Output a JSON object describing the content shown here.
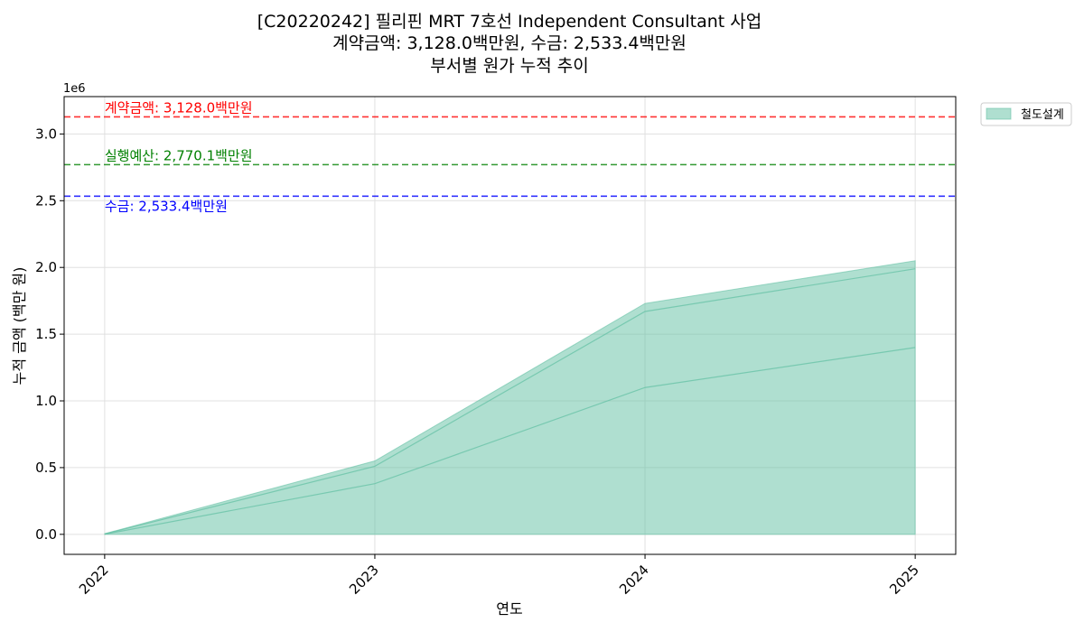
{
  "chart_data": {
    "type": "area",
    "title_lines": [
      "[C20220242] 필리핀 MRT 7호선 Independent Consultant 사업",
      "계약금액: 3,128.0백만원, 수금: 2,533.4백만원",
      "부서별 원가 누적 추이"
    ],
    "xlabel": "연도",
    "ylabel": "누적 금액 (백만 원)",
    "y_scale_label": "1e6",
    "x": [
      2022,
      2023,
      2024,
      2025
    ],
    "x_tick_labels": [
      "2022",
      "2023",
      "2024",
      "2025"
    ],
    "xlim": [
      2021.85,
      2025.15
    ],
    "ylim": [
      -150000,
      3280000
    ],
    "y_ticks": [
      0,
      500000,
      1000000,
      1500000,
      2000000,
      2500000,
      3000000
    ],
    "y_tick_labels": [
      "0.0",
      "0.5",
      "1.0",
      "1.5",
      "2.0",
      "2.5",
      "3.0"
    ],
    "series": [
      {
        "name": "철도설계",
        "color": "#66c2a5",
        "values": [
          5000,
          550000,
          1730000,
          2050000
        ],
        "inner_lines": [
          [
            3000,
            510000,
            1670000,
            1990000
          ],
          [
            1000,
            380000,
            1100000,
            1400000
          ]
        ]
      }
    ],
    "reference_lines": [
      {
        "label": "계약금액: 3,128.0백만원",
        "value": 3128000,
        "color": "#ff0000",
        "label_position": "above"
      },
      {
        "label": "실행예산: 2,770.1백만원",
        "value": 2770100,
        "color": "#008000",
        "label_position": "above"
      },
      {
        "label": "수금: 2,533.4백만원",
        "value": 2533400,
        "color": "#0000ff",
        "label_position": "below"
      }
    ],
    "grid": true,
    "legend_position": "outside-top-right"
  }
}
